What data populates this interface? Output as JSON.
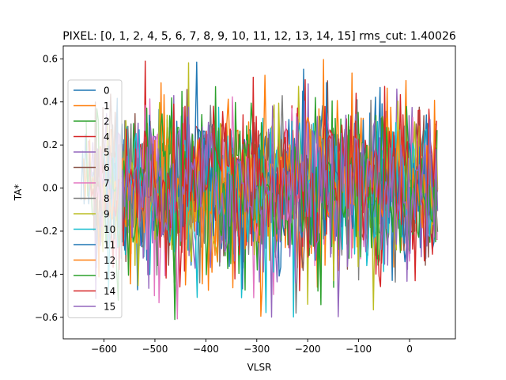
{
  "chart_data": {
    "type": "line",
    "title": "PIXEL: [0, 1, 2, 4, 5, 6, 7, 8, 9, 10, 11, 12, 13, 14, 15]   rms_cut: 1.40026",
    "xlabel": "VLSR",
    "ylabel": "TA*",
    "xlim": [
      -680,
      90
    ],
    "ylim": [
      -0.7,
      0.66
    ],
    "xticks": [
      -600,
      -500,
      -400,
      -300,
      -200,
      -100,
      0
    ],
    "xtick_labels": [
      "−600",
      "−500",
      "−400",
      "−300",
      "−200",
      "−100",
      "0"
    ],
    "yticks": [
      -0.6,
      -0.4,
      -0.2,
      0.0,
      0.2,
      0.4,
      0.6
    ],
    "ytick_labels": [
      "−0.6",
      "−0.4",
      "−0.2",
      "0.0",
      "0.2",
      "0.4",
      "0.6"
    ],
    "grid": false,
    "legend_position": "upper-left",
    "series": [
      {
        "name": "0",
        "color": "#1f77b4",
        "x_start": -645,
        "x_end": 55
      },
      {
        "name": "1",
        "color": "#ff7f0e",
        "x_start": -640,
        "x_end": 55
      },
      {
        "name": "2",
        "color": "#2ca02c",
        "x_start": -635,
        "x_end": 55
      },
      {
        "name": "4",
        "color": "#d62728",
        "x_start": -630,
        "x_end": 55
      },
      {
        "name": "5",
        "color": "#9467bd",
        "x_start": -625,
        "x_end": 55
      },
      {
        "name": "6",
        "color": "#8c564b",
        "x_start": -620,
        "x_end": 55
      },
      {
        "name": "7",
        "color": "#e377c2",
        "x_start": -615,
        "x_end": 55
      },
      {
        "name": "8",
        "color": "#7f7f7f",
        "x_start": -610,
        "x_end": 55
      },
      {
        "name": "9",
        "color": "#bcbd22",
        "x_start": -605,
        "x_end": 55
      },
      {
        "name": "10",
        "color": "#17becf",
        "x_start": -600,
        "x_end": 55
      },
      {
        "name": "11",
        "color": "#1f77b4",
        "x_start": -595,
        "x_end": 55
      },
      {
        "name": "12",
        "color": "#ff7f0e",
        "x_start": -590,
        "x_end": 55
      },
      {
        "name": "13",
        "color": "#2ca02c",
        "x_start": -585,
        "x_end": 55
      },
      {
        "name": "14",
        "color": "#d62728",
        "x_start": -580,
        "x_end": 55
      },
      {
        "name": "15",
        "color": "#9467bd",
        "x_start": -575,
        "x_end": 55
      }
    ],
    "noise_sigma": 0.18,
    "x_step": 3
  }
}
